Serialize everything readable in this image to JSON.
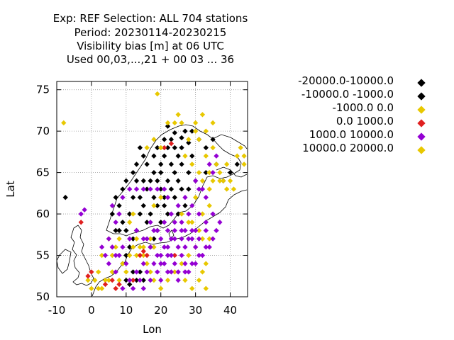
{
  "title": {
    "line1": "Exp: REF   Selection: ALL    704 stations",
    "line2": "Period: 20230114-20230215",
    "line3": "Visibility bias [m] at  06 UTC",
    "line4": "Used  00,03,...,21  + 00 03 ... 36"
  },
  "chart_data": {
    "type": "scatter",
    "xlabel": "Lon",
    "ylabel": "Lat",
    "xlim": [
      -10,
      45
    ],
    "ylim": [
      50,
      76
    ],
    "xticks": [
      "-10",
      "0",
      "10",
      "20",
      "30",
      "40"
    ],
    "xtick_values": [
      -10,
      0,
      10,
      20,
      30,
      40
    ],
    "yticks": [
      "50",
      "55",
      "60",
      "65",
      "70",
      "75"
    ],
    "ytick_values": [
      50,
      55,
      60,
      65,
      70,
      75
    ],
    "grid": true,
    "legend_placement": "right",
    "series": [
      {
        "name": "-20000.0-10000.0",
        "color": "#000000",
        "points": [
          [
            22,
            70.6
          ],
          [
            24,
            69.8
          ],
          [
            26,
            69.2
          ],
          [
            28,
            68.6
          ]
        ]
      },
      {
        "name": "-10000.0 -1000.0",
        "color": "#000000",
        "points": [
          [
            -7.5,
            62
          ],
          [
            15,
            67
          ],
          [
            16,
            66
          ],
          [
            18,
            65
          ],
          [
            19,
            64
          ],
          [
            20,
            66
          ],
          [
            21,
            67
          ],
          [
            22,
            68
          ],
          [
            23,
            66
          ],
          [
            24,
            65
          ],
          [
            25,
            67
          ],
          [
            20,
            63
          ],
          [
            21,
            62
          ],
          [
            18,
            62
          ],
          [
            17,
            60
          ],
          [
            16,
            59
          ],
          [
            15,
            61
          ],
          [
            14,
            60
          ],
          [
            13,
            58
          ],
          [
            12,
            57
          ],
          [
            11,
            56
          ],
          [
            10,
            55
          ],
          [
            9,
            54
          ],
          [
            12,
            53
          ],
          [
            13,
            52
          ],
          [
            14,
            53
          ],
          [
            15,
            52
          ],
          [
            10,
            52
          ],
          [
            11,
            51.5
          ],
          [
            8,
            61
          ],
          [
            6,
            60
          ],
          [
            7,
            62
          ],
          [
            9,
            63
          ],
          [
            10,
            64
          ],
          [
            12,
            65
          ],
          [
            13,
            66
          ],
          [
            14,
            68
          ],
          [
            24,
            62
          ],
          [
            26,
            63
          ],
          [
            27,
            61
          ],
          [
            25,
            60
          ],
          [
            22,
            60
          ],
          [
            20,
            59
          ],
          [
            19,
            58
          ],
          [
            18,
            57
          ],
          [
            17,
            56
          ],
          [
            28,
            65
          ],
          [
            30,
            64
          ],
          [
            29,
            67
          ],
          [
            26,
            68
          ],
          [
            27,
            70
          ],
          [
            29,
            70
          ],
          [
            31,
            69
          ],
          [
            33,
            68
          ],
          [
            35,
            69
          ],
          [
            36,
            66
          ],
          [
            33,
            65
          ],
          [
            38,
            64
          ],
          [
            40,
            65
          ],
          [
            42,
            66
          ],
          [
            16,
            63
          ],
          [
            17,
            64
          ],
          [
            19,
            61
          ],
          [
            21,
            61
          ],
          [
            23,
            63
          ],
          [
            22,
            64
          ],
          [
            20,
            65
          ],
          [
            18,
            67
          ],
          [
            19,
            68
          ],
          [
            21,
            69
          ],
          [
            23,
            69
          ],
          [
            24,
            68
          ],
          [
            25,
            64
          ],
          [
            26,
            66
          ],
          [
            28,
            63
          ],
          [
            14,
            62
          ],
          [
            12,
            62
          ],
          [
            13,
            64
          ],
          [
            15,
            64
          ],
          [
            11,
            60
          ],
          [
            9,
            59
          ],
          [
            10,
            58
          ],
          [
            8,
            58
          ],
          [
            7,
            58
          ]
        ]
      },
      {
        "name": "-1000.0 0.0",
        "color": "#e8c800",
        "points": [
          [
            19,
            74.5
          ],
          [
            0,
            51
          ],
          [
            1,
            52
          ],
          [
            3,
            51
          ],
          [
            5,
            52
          ],
          [
            2,
            53
          ],
          [
            6,
            55
          ],
          [
            7,
            56
          ],
          [
            8,
            57
          ],
          [
            9,
            54
          ],
          [
            11,
            55
          ],
          [
            12,
            56
          ],
          [
            13,
            57
          ],
          [
            14,
            56
          ],
          [
            15,
            55
          ],
          [
            16,
            54
          ],
          [
            17,
            53
          ],
          [
            18,
            52
          ],
          [
            20,
            51
          ],
          [
            22,
            52
          ],
          [
            24,
            53
          ],
          [
            26,
            54
          ],
          [
            28,
            55
          ],
          [
            30,
            56
          ],
          [
            31,
            58
          ],
          [
            29,
            59
          ],
          [
            32,
            60
          ],
          [
            34,
            61
          ],
          [
            30,
            62
          ],
          [
            32,
            64
          ],
          [
            34,
            65
          ],
          [
            36,
            66
          ],
          [
            33,
            67
          ],
          [
            35,
            68
          ],
          [
            31,
            69
          ],
          [
            30,
            70
          ],
          [
            44,
            67
          ],
          [
            33,
            54
          ],
          [
            32,
            53
          ],
          [
            31,
            52
          ],
          [
            33,
            51
          ],
          [
            29,
            51
          ],
          [
            27,
            52
          ],
          [
            10,
            53
          ],
          [
            8,
            52
          ],
          [
            6,
            53
          ],
          [
            4,
            52
          ],
          [
            2,
            51
          ],
          [
            -1,
            52
          ],
          [
            3,
            55
          ],
          [
            5,
            57
          ],
          [
            11,
            59
          ],
          [
            12,
            60
          ],
          [
            18,
            61
          ],
          [
            20,
            62
          ],
          [
            26,
            60
          ],
          [
            28,
            59
          ],
          [
            34,
            57
          ],
          [
            32,
            57
          ],
          [
            17,
            57
          ],
          [
            18,
            56
          ],
          [
            34,
            63
          ],
          [
            35,
            64
          ],
          [
            37,
            65
          ],
          [
            39,
            66
          ],
          [
            14,
            55
          ],
          [
            13,
            55
          ],
          [
            15,
            56
          ]
        ]
      },
      {
        "name": "0.0 1000.0",
        "color": "#e02020",
        "points": [
          [
            -3,
            59
          ],
          [
            -1,
            52.5
          ],
          [
            0,
            53
          ],
          [
            4,
            51.5
          ],
          [
            6,
            52
          ],
          [
            7,
            51
          ],
          [
            8,
            51.5
          ],
          [
            14,
            55
          ],
          [
            15,
            55.5
          ],
          [
            16,
            55
          ],
          [
            12,
            52
          ],
          [
            21,
            68
          ],
          [
            23,
            68.5
          ],
          [
            24,
            55
          ]
        ]
      },
      {
        "name": "1000.0 10000.0",
        "color": "#9400d3",
        "points": [
          [
            -3,
            60
          ],
          [
            -2,
            60.5
          ],
          [
            3,
            56
          ],
          [
            5,
            57
          ],
          [
            7,
            55
          ],
          [
            9,
            56
          ],
          [
            11,
            57
          ],
          [
            13,
            58
          ],
          [
            15,
            57
          ],
          [
            17,
            56
          ],
          [
            19,
            55
          ],
          [
            21,
            54
          ],
          [
            23,
            53
          ],
          [
            25,
            52
          ],
          [
            27,
            53
          ],
          [
            29,
            54
          ],
          [
            31,
            55
          ],
          [
            33,
            56
          ],
          [
            35,
            57
          ],
          [
            33,
            59
          ],
          [
            31,
            60
          ],
          [
            29,
            61
          ],
          [
            27,
            62
          ],
          [
            25,
            61
          ],
          [
            23,
            60
          ],
          [
            21,
            59
          ],
          [
            19,
            58
          ],
          [
            17,
            59
          ],
          [
            15,
            54
          ],
          [
            13,
            53
          ],
          [
            11,
            52
          ],
          [
            9,
            51
          ],
          [
            7,
            53
          ],
          [
            5,
            54
          ],
          [
            22,
            56
          ],
          [
            24,
            57
          ],
          [
            26,
            58
          ],
          [
            28,
            57
          ],
          [
            30,
            56
          ],
          [
            20,
            55
          ],
          [
            18,
            54
          ],
          [
            16,
            53
          ],
          [
            14,
            52
          ],
          [
            12,
            51
          ],
          [
            26,
            55
          ],
          [
            24,
            54
          ],
          [
            22,
            53
          ],
          [
            20,
            52
          ],
          [
            28,
            53
          ],
          [
            30,
            54
          ],
          [
            32,
            55
          ],
          [
            34,
            56
          ],
          [
            30,
            58
          ],
          [
            28,
            60
          ],
          [
            26,
            59
          ],
          [
            24,
            59
          ],
          [
            22,
            58
          ],
          [
            20,
            57
          ],
          [
            36,
            58
          ],
          [
            37,
            59
          ],
          [
            35,
            60
          ],
          [
            25,
            56
          ],
          [
            27,
            56
          ],
          [
            29,
            57
          ],
          [
            23,
            57
          ],
          [
            21,
            56
          ],
          [
            19,
            53
          ],
          [
            17,
            52
          ],
          [
            15,
            51
          ],
          [
            10,
            54
          ],
          [
            8,
            55
          ],
          [
            6,
            56
          ],
          [
            4,
            55
          ],
          [
            27,
            58
          ],
          [
            29,
            58
          ],
          [
            31,
            57
          ],
          [
            33,
            58
          ],
          [
            26,
            57
          ],
          [
            24,
            58
          ],
          [
            22,
            55
          ],
          [
            18,
            58
          ],
          [
            16,
            57
          ],
          [
            20,
            54
          ],
          [
            25,
            53
          ],
          [
            27,
            54
          ],
          [
            23,
            55
          ],
          [
            32,
            63
          ],
          [
            33,
            62
          ],
          [
            31,
            63
          ],
          [
            30,
            64
          ],
          [
            34,
            66
          ],
          [
            35,
            65
          ],
          [
            36,
            67
          ],
          [
            22,
            62
          ],
          [
            21,
            63
          ],
          [
            19,
            63
          ],
          [
            17,
            63
          ],
          [
            15,
            63
          ],
          [
            13,
            63
          ],
          [
            11,
            63
          ],
          [
            9,
            62
          ],
          [
            8,
            60
          ],
          [
            7,
            59
          ],
          [
            6,
            61
          ]
        ]
      },
      {
        "name": "10000.0 20000.0",
        "color": "#e8c800",
        "points": [
          [
            -8,
            71
          ],
          [
            43,
            68
          ],
          [
            44,
            66
          ],
          [
            42,
            67
          ],
          [
            38,
            64
          ],
          [
            40,
            64
          ],
          [
            41,
            63
          ],
          [
            39,
            63
          ],
          [
            37,
            64
          ],
          [
            31,
            65
          ],
          [
            29,
            66
          ],
          [
            27,
            67
          ],
          [
            33,
            70
          ],
          [
            35,
            71
          ],
          [
            28,
            69
          ],
          [
            30,
            71
          ],
          [
            32,
            72
          ],
          [
            26,
            71
          ],
          [
            25,
            72
          ],
          [
            22,
            71
          ],
          [
            24,
            71
          ],
          [
            20,
            68
          ],
          [
            18,
            69
          ],
          [
            16,
            68
          ]
        ]
      }
    ]
  },
  "legend": [
    {
      "label": "-20000.0-10000.0",
      "color": "#000000"
    },
    {
      "label": "-10000.0 -1000.0",
      "color": "#000000"
    },
    {
      "label": "-1000.0 0.0",
      "color": "#e8c800"
    },
    {
      "label": "0.0 1000.0",
      "color": "#e02020"
    },
    {
      "label": "1000.0 10000.0",
      "color": "#9400d3"
    },
    {
      "label": "10000.0 20000.0",
      "color": "#e8c800"
    }
  ],
  "coastline_color": "#000000"
}
